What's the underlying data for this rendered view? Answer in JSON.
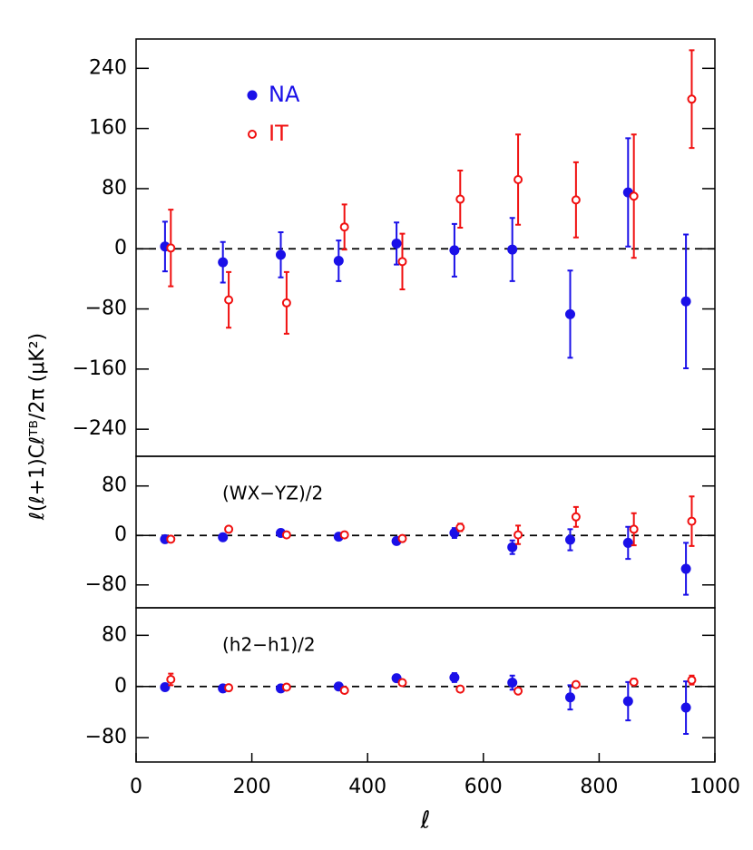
{
  "chart_data": [
    {
      "type": "scatter",
      "ylabel": "ℓ(ℓ+1)Cℓᵀᴮ/2π   (μK²)",
      "xlim": [
        0,
        1000
      ],
      "ylim": [
        -276,
        279
      ],
      "yticks": [
        {
          "value": -240,
          "label": "−240"
        },
        {
          "value": -160,
          "label": "−160"
        },
        {
          "value": -80,
          "label": "−80"
        },
        0,
        80,
        160,
        240
      ],
      "legend": "upper left",
      "series": [
        {
          "name": "NA",
          "color": "#1a10e8",
          "marker": "filled",
          "x": [
            50,
            150,
            250,
            350,
            450,
            550,
            650,
            750,
            850,
            950
          ],
          "values": [
            3,
            -18,
            -8,
            -16,
            7,
            -2,
            -1,
            -87,
            75,
            -70
          ],
          "errors": [
            33,
            27,
            30,
            27,
            28,
            35,
            42,
            58,
            72,
            89
          ]
        },
        {
          "name": "IT",
          "color": "#f01010",
          "marker": "open",
          "x": [
            60,
            160,
            260,
            360,
            460,
            560,
            660,
            760,
            860,
            960
          ],
          "values": [
            1,
            -68,
            -72,
            29,
            -17,
            66,
            92,
            65,
            70,
            199
          ],
          "errors": [
            51,
            37,
            41,
            30,
            37,
            38,
            60,
            50,
            82,
            65
          ]
        }
      ]
    },
    {
      "type": "scatter",
      "annotation": "(WX−YZ)/2",
      "xlim": [
        0,
        1000
      ],
      "ylim": [
        -117,
        128
      ],
      "yticks": [
        {
          "value": -80,
          "label": "−80"
        },
        0,
        80
      ],
      "series": [
        {
          "color": "#1a10e8",
          "marker": "filled",
          "x": [
            50,
            150,
            250,
            350,
            450,
            550,
            650,
            750,
            850,
            950
          ],
          "values": [
            -6,
            -3,
            4,
            -2,
            -9,
            4,
            -19,
            -7,
            -12,
            -54
          ],
          "errors": [
            3,
            3,
            3,
            3,
            4,
            8,
            11,
            17,
            26,
            42
          ]
        },
        {
          "color": "#f01010",
          "marker": "open",
          "x": [
            60,
            160,
            260,
            360,
            460,
            560,
            660,
            760,
            860,
            960
          ],
          "values": [
            -6,
            10,
            1,
            1,
            -5,
            13,
            1,
            30,
            10,
            23
          ],
          "errors": [
            4,
            3,
            2,
            2,
            3,
            6,
            15,
            16,
            26,
            40
          ]
        }
      ]
    },
    {
      "type": "scatter",
      "annotation": "(h2−h1)/2",
      "xlabel": "ℓ",
      "xlim": [
        0,
        1000
      ],
      "ylim": [
        -118,
        123
      ],
      "xticks": [
        0,
        200,
        400,
        600,
        800,
        1000
      ],
      "yticks": [
        {
          "value": -80,
          "label": "−80"
        },
        0,
        80
      ],
      "series": [
        {
          "color": "#1a10e8",
          "marker": "filled",
          "x": [
            50,
            150,
            250,
            350,
            450,
            550,
            650,
            750,
            850,
            950
          ],
          "values": [
            -1,
            -3,
            -3,
            0,
            13,
            14,
            6,
            -17,
            -23,
            -33
          ],
          "errors": [
            2,
            2,
            2,
            2,
            4,
            7,
            11,
            19,
            30,
            41
          ]
        },
        {
          "color": "#f01010",
          "marker": "open",
          "x": [
            60,
            160,
            260,
            360,
            460,
            560,
            660,
            760,
            860,
            960
          ],
          "values": [
            11,
            -2,
            -1,
            -6,
            6,
            -4,
            -7,
            3,
            7,
            10
          ],
          "errors": [
            9,
            2,
            2,
            2,
            3,
            2,
            3,
            3,
            5,
            7
          ]
        }
      ]
    }
  ]
}
